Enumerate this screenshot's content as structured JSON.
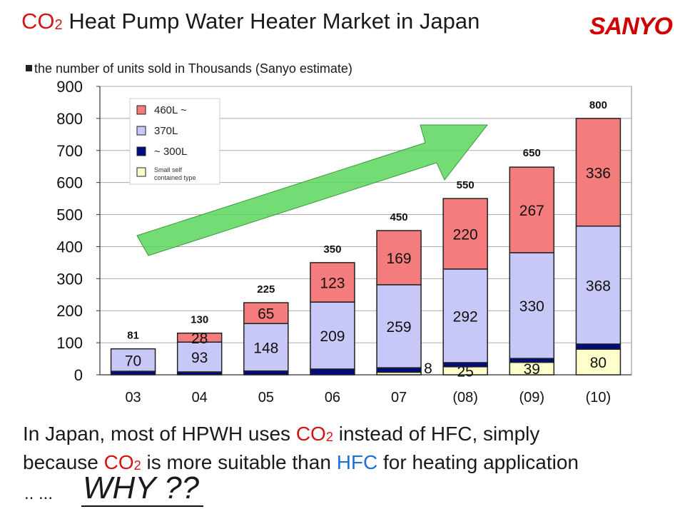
{
  "header": {
    "title_co2": "CO",
    "title_co2_sub": "2",
    "title_rest": " Heat Pump Water Heater Market in Japan",
    "logo": "SANYO"
  },
  "subtitle": "the number of units sold in Thousands (Sanyo estimate)",
  "colors": {
    "s460": "#f47c7c",
    "s370": "#c8c8f8",
    "s300": "#000c80",
    "small": "#ffffcc",
    "arrow": "#5cd65c",
    "co2": "#d51515",
    "hfc": "#1f6fd6"
  },
  "chart_data": {
    "type": "bar",
    "stacked": true,
    "categories": [
      "03",
      "04",
      "05",
      "06",
      "07",
      "(08)",
      "(09)",
      "(10)"
    ],
    "ylim": [
      0,
      900
    ],
    "yticks": [
      0,
      100,
      200,
      300,
      400,
      500,
      600,
      700,
      800,
      900
    ],
    "totals": [
      "81",
      "130",
      "225",
      "350",
      "450",
      "550",
      "650",
      "800"
    ],
    "total_values": [
      81,
      130,
      225,
      350,
      450,
      550,
      650,
      800
    ],
    "series": [
      {
        "name": "Small self contained type",
        "key": "small",
        "values": [
          0,
          0,
          0,
          0,
          8,
          25,
          39,
          80
        ],
        "labels": [
          "",
          "",
          "",
          "",
          "8",
          "25",
          "39",
          "80"
        ]
      },
      {
        "name": "~ 300L",
        "key": "s300",
        "values": [
          11,
          9,
          12,
          18,
          14,
          13,
          12,
          16
        ],
        "labels": [
          "",
          "",
          "",
          "",
          "",
          "",
          "",
          ""
        ]
      },
      {
        "name": "370L",
        "key": "s370",
        "values": [
          70,
          93,
          148,
          209,
          259,
          292,
          330,
          368
        ],
        "labels": [
          "70",
          "93",
          "148",
          "209",
          "259",
          "292",
          "330",
          "368"
        ]
      },
      {
        "name": "460L ~",
        "key": "s460",
        "values": [
          0,
          28,
          65,
          123,
          169,
          220,
          267,
          336
        ],
        "labels": [
          "",
          "28",
          "65",
          "123",
          "169",
          "220",
          "267",
          "336"
        ]
      }
    ],
    "legend": {
      "placement": "top-left",
      "items": [
        {
          "label": "460L ~",
          "key": "s460"
        },
        {
          "label": "370L",
          "key": "s370"
        },
        {
          "label": "~ 300L",
          "key": "s300"
        },
        {
          "label": "Small self contained type",
          "key": "small"
        }
      ]
    }
  },
  "body": {
    "line1_a": "In Japan, most of HPWH uses ",
    "line1_b": " instead of HFC, simply",
    "line2_a": "because ",
    "line2_b": " is more suitable than ",
    "hfc": "HFC",
    "line2_c": " for heating application",
    "co2": "CO",
    "co2_sub": "2"
  },
  "ellipsis": ".. ...",
  "why": "WHY ??"
}
